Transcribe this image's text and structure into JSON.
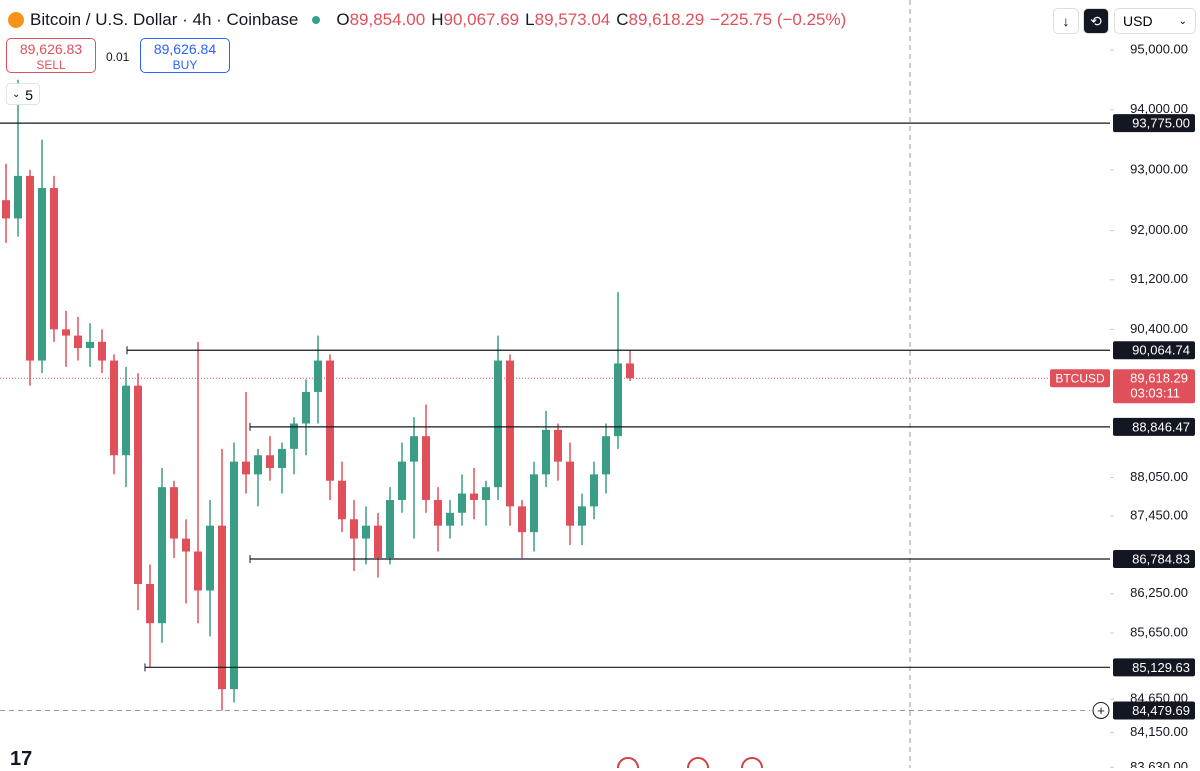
{
  "header": {
    "title": "Bitcoin / U.S. Dollar · 4h · Coinbase",
    "ohlc": [
      {
        "key": "O",
        "value": "89,854.00"
      },
      {
        "key": "H",
        "value": "90,067.69"
      },
      {
        "key": "L",
        "value": "89,573.04"
      },
      {
        "key": "C",
        "value": "89,618.29"
      }
    ],
    "change": "−225.75 (−0.25%)",
    "currency": "USD"
  },
  "trade": {
    "sell_price": "89,626.83",
    "sell_label": "SELL",
    "quantity": "0.01",
    "buy_price": "89,626.84",
    "buy_label": "BUY"
  },
  "indicators_toggle": "5",
  "chart_data": {
    "type": "candlestick",
    "log_scale": true,
    "ylim": [
      83620,
      95850
    ],
    "yticks": [
      {
        "value": 95000,
        "label": "95,000.00"
      },
      {
        "value": 94000,
        "label": "94,000.00"
      },
      {
        "value": 93000,
        "label": "93,000.00"
      },
      {
        "value": 92000,
        "label": "92,000.00"
      },
      {
        "value": 91200,
        "label": "91,200.00"
      },
      {
        "value": 90400,
        "label": "90,400.00"
      },
      {
        "value": 88050,
        "label": "88,050.00"
      },
      {
        "value": 87450,
        "label": "87,450.00"
      },
      {
        "value": 86250,
        "label": "86,250.00"
      },
      {
        "value": 85650,
        "label": "85,650.00"
      },
      {
        "value": 84650,
        "label": "84,650.00"
      },
      {
        "value": 84150,
        "label": "84,150.00"
      },
      {
        "value": 83630,
        "label": "83,630.00"
      }
    ],
    "up_color": "#3a9e86",
    "down_color": "#e0505a",
    "candles": [
      [
        92500,
        93100,
        91800,
        92200
      ],
      [
        92200,
        94500,
        91900,
        92900
      ],
      [
        92900,
        93000,
        89500,
        89900
      ],
      [
        89900,
        93500,
        89700,
        92700
      ],
      [
        92700,
        92900,
        90200,
        90400
      ],
      [
        90400,
        90700,
        89800,
        90300
      ],
      [
        90300,
        90600,
        89900,
        90100
      ],
      [
        90100,
        90500,
        89800,
        90200
      ],
      [
        90200,
        90400,
        89700,
        89900
      ],
      [
        89900,
        90000,
        88100,
        88400
      ],
      [
        88400,
        89800,
        87900,
        89500
      ],
      [
        89500,
        89700,
        86000,
        86400
      ],
      [
        86400,
        86700,
        85130,
        85800
      ],
      [
        85800,
        88200,
        85500,
        87900
      ],
      [
        87900,
        88000,
        86800,
        87100
      ],
      [
        87100,
        87400,
        86100,
        86900
      ],
      [
        86900,
        90200,
        85800,
        86300
      ],
      [
        86300,
        87700,
        85600,
        87300
      ],
      [
        87300,
        88500,
        84479,
        84800
      ],
      [
        84800,
        88600,
        84600,
        88300
      ],
      [
        88300,
        89400,
        87800,
        88100
      ],
      [
        88100,
        88500,
        87600,
        88400
      ],
      [
        88400,
        88700,
        88000,
        88200
      ],
      [
        88200,
        88600,
        87800,
        88500
      ],
      [
        88500,
        89000,
        88100,
        88900
      ],
      [
        88900,
        89600,
        88400,
        89400
      ],
      [
        89400,
        90300,
        88900,
        89900
      ],
      [
        89900,
        90000,
        87700,
        88000
      ],
      [
        88000,
        88300,
        87200,
        87400
      ],
      [
        87400,
        87700,
        86600,
        87100
      ],
      [
        87100,
        87600,
        86700,
        87300
      ],
      [
        87300,
        87500,
        86500,
        86800
      ],
      [
        86800,
        87900,
        86700,
        87700
      ],
      [
        87700,
        88600,
        87500,
        88300
      ],
      [
        88300,
        89000,
        87100,
        88700
      ],
      [
        88700,
        89200,
        87500,
        87700
      ],
      [
        87700,
        87900,
        86900,
        87300
      ],
      [
        87300,
        87700,
        87100,
        87500
      ],
      [
        87500,
        88100,
        87300,
        87800
      ],
      [
        87800,
        88200,
        87400,
        87700
      ],
      [
        87700,
        88000,
        87300,
        87900
      ],
      [
        87900,
        90300,
        87700,
        89900
      ],
      [
        89900,
        90000,
        87300,
        87600
      ],
      [
        87600,
        87700,
        86800,
        87200
      ],
      [
        87200,
        88300,
        86900,
        88100
      ],
      [
        88100,
        89100,
        87900,
        88800
      ],
      [
        88800,
        88900,
        88000,
        88300
      ],
      [
        88300,
        88600,
        87000,
        87300
      ],
      [
        87300,
        87800,
        87000,
        87600
      ],
      [
        87600,
        88300,
        87400,
        88100
      ],
      [
        88100,
        88900,
        87800,
        88700
      ],
      [
        88700,
        91000,
        88500,
        89854
      ],
      [
        89854,
        90067.69,
        89573.04,
        89618.29
      ]
    ],
    "levels": [
      {
        "value": 93775,
        "label": "93,775.00"
      },
      {
        "value": 90064.74,
        "label": "90,064.74"
      },
      {
        "value": 88846.47,
        "label": "88,846.47"
      },
      {
        "value": 86784.83,
        "label": "86,784.83"
      },
      {
        "value": 85129.63,
        "label": "85,129.63"
      }
    ],
    "price": {
      "value": 89618.29,
      "label": "89,618.29"
    },
    "symbol": "BTCUSD",
    "countdown": "03:03:11",
    "crosshair": {
      "value": 84479.69,
      "label": "84,479.69"
    }
  }
}
